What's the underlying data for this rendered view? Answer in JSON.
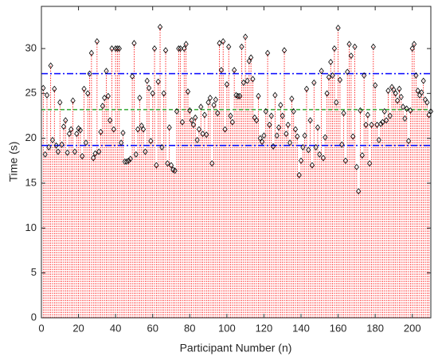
{
  "chart_data": {
    "type": "stem",
    "xlabel": "Participant Number (n)",
    "ylabel": "Time (s)",
    "xlim": [
      0,
      210
    ],
    "xticks": [
      0,
      20,
      40,
      60,
      80,
      100,
      120,
      140,
      160,
      180,
      200
    ],
    "ylim": [
      0,
      34.7
    ],
    "yticks": [
      0,
      5,
      10,
      15,
      20,
      25,
      30
    ],
    "stem_color": "#ff0000",
    "marker_color": "#000000",
    "reference_lines": [
      {
        "value": 27.2,
        "color": "#0000ff",
        "style": "dashdot"
      },
      {
        "value": 23.2,
        "color": "#33aa33",
        "style": "dashed"
      },
      {
        "value": 19.2,
        "color": "#0000ff",
        "style": "dashdot"
      }
    ],
    "x": [
      1,
      2,
      3,
      4,
      5,
      6,
      7,
      8,
      9,
      10,
      11,
      12,
      13,
      14,
      15,
      16,
      17,
      18,
      19,
      20,
      21,
      22,
      23,
      24,
      25,
      26,
      27,
      28,
      29,
      30,
      31,
      32,
      33,
      34,
      35,
      36,
      37,
      38,
      39,
      40,
      41,
      42,
      43,
      44,
      45,
      46,
      47,
      48,
      49,
      50,
      51,
      52,
      53,
      54,
      55,
      56,
      57,
      58,
      59,
      60,
      61,
      62,
      63,
      64,
      65,
      66,
      67,
      68,
      69,
      70,
      71,
      72,
      73,
      74,
      75,
      76,
      77,
      78,
      79,
      80,
      81,
      82,
      83,
      84,
      85,
      86,
      87,
      88,
      89,
      90,
      91,
      92,
      93,
      94,
      95,
      96,
      97,
      98,
      99,
      100,
      101,
      102,
      103,
      104,
      105,
      106,
      107,
      108,
      109,
      110,
      111,
      112,
      113,
      114,
      115,
      116,
      117,
      118,
      119,
      120,
      121,
      122,
      123,
      124,
      125,
      126,
      127,
      128,
      129,
      130,
      131,
      132,
      133,
      134,
      135,
      136,
      137,
      138,
      139,
      140,
      141,
      142,
      143,
      144,
      145,
      146,
      147,
      148,
      149,
      150,
      151,
      152,
      153,
      154,
      155,
      156,
      157,
      158,
      159,
      160,
      161,
      162,
      163,
      164,
      165,
      166,
      167,
      168,
      169,
      170,
      171,
      172,
      173,
      174,
      175,
      176,
      177,
      178,
      179,
      180,
      181,
      182,
      183,
      184,
      185,
      186,
      187,
      188,
      189,
      190,
      191,
      192,
      193,
      194,
      195,
      196,
      197,
      198,
      199,
      200,
      201,
      202,
      203,
      204,
      205,
      206,
      207,
      208,
      209,
      210
    ],
    "values": [
      25.6,
      18.2,
      24.8,
      19.0,
      28.1,
      19.8,
      25.5,
      19.2,
      18.5,
      24.0,
      19.3,
      21.3,
      22.0,
      18.4,
      20.5,
      21.0,
      24.2,
      18.5,
      20.5,
      21.1,
      20.9,
      18.0,
      25.5,
      19.5,
      25.0,
      27.2,
      29.5,
      17.8,
      18.3,
      30.8,
      18.5,
      20.7,
      23.6,
      24.5,
      27.5,
      24.7,
      22.0,
      30.0,
      21.0,
      30.0,
      30.0,
      30.0,
      19.5,
      20.6,
      17.4,
      17.4,
      17.5,
      17.7,
      26.9,
      30.6,
      18.2,
      21.0,
      24.5,
      21.4,
      21.0,
      18.5,
      26.4,
      25.6,
      19.7,
      25.0,
      30.0,
      17.0,
      26.3,
      32.4,
      19.0,
      25.0,
      29.8,
      17.2,
      21.2,
      17.0,
      16.5,
      16.4,
      23.0,
      30.0,
      30.0,
      21.8,
      30.0,
      30.5,
      25.2,
      23.1,
      22.0,
      21.5,
      22.3,
      19.8,
      21.0,
      23.5,
      20.5,
      22.6,
      20.4,
      24.0,
      24.5,
      17.2,
      23.7,
      24.3,
      22.8,
      30.6,
      27.6,
      30.8,
      21.0,
      26.0,
      30.2,
      22.5,
      21.8,
      27.6,
      24.8,
      24.7,
      24.7,
      30.2,
      26.2,
      31.3,
      26.4,
      28.6,
      29.0,
      26.6,
      22.3,
      22.0,
      24.7,
      20.0,
      19.6,
      20.3,
      23.0,
      29.5,
      21.5,
      22.5,
      19.1,
      24.8,
      20.3,
      21.2,
      23.7,
      22.5,
      29.8,
      20.5,
      21.5,
      19.5,
      24.4,
      23.0,
      21.0,
      20.2,
      15.9,
      17.5,
      19.0,
      20.3,
      25.5,
      18.7,
      22.0,
      17.0,
      26.2,
      19.0,
      21.2,
      18.2,
      27.5,
      17.8,
      20.1,
      25.0,
      26.8,
      28.5,
      27.0,
      30.0,
      24.0,
      32.3,
      26.5,
      19.3,
      22.8,
      17.5,
      27.4,
      30.5,
      29.2,
      20.2,
      30.2,
      16.8,
      14.1,
      23.1,
      18.1,
      27.0,
      21.5,
      22.6,
      17.2,
      21.5,
      30.2,
      25.9,
      21.5,
      19.8,
      21.6,
      21.8,
      23.0,
      22.0,
      25.3,
      22.5,
      25.7,
      25.4,
      25.0,
      24.2,
      25.5,
      24.6,
      23.5,
      22.2,
      23.3,
      19.7,
      23.1,
      30.0,
      30.5,
      27.0,
      25.3,
      24.8,
      25.1,
      26.4,
      24.3,
      24.0,
      22.6,
      23.0
    ]
  }
}
